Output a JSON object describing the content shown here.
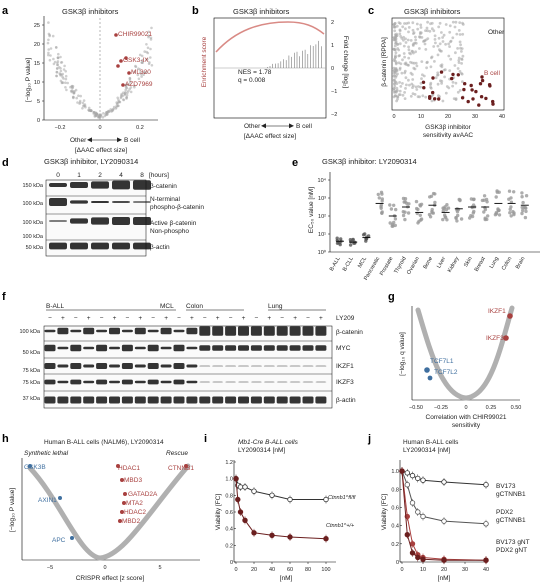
{
  "colors": {
    "red": "#a8403f",
    "blue": "#3f6f9f",
    "grey": "#a8a8a8",
    "dark": "#5a5a5a",
    "pink": "#d98a85",
    "brown": "#6b1f1f"
  },
  "panels": {
    "a": {
      "letter": "a",
      "title": "GSK3β inhibitors",
      "ylabel": "[−log₁₀ P value]",
      "xtitle": "[ΔAAC effect size]",
      "dir_left": "Other",
      "dir_right": "B cell",
      "xticks": [
        "−0.2",
        "0",
        "0.2"
      ],
      "yticks": [
        "0",
        "5",
        "10",
        "15",
        "20",
        "25"
      ],
      "labels": [
        "CHIR99021",
        "GSK3-IX",
        "ML320",
        "AZD7969"
      ]
    },
    "b": {
      "letter": "b",
      "title": "GSK3β inhibitors",
      "ylabel_left": "Enrichment score",
      "ylabel_right": "Fold change [log₂]",
      "nes": "NES = 1.78",
      "q": "q = 0.008",
      "xtitle": "[ΔAAC effect size]",
      "dir_left": "Other",
      "dir_right": "B cell",
      "yticks_right": [
        "2",
        "1",
        "0",
        "−1",
        "−2"
      ]
    },
    "c": {
      "letter": "c",
      "title": "GSK3β inhibitors",
      "ylabel": "β-catenin [RPPA]",
      "xtitle1": "GSK3β inhibitor",
      "xtitle2": "sensitivity avAAC",
      "other": "Other",
      "bcell": "B cell",
      "xticks": [
        "0",
        "10",
        "20",
        "30",
        "40"
      ]
    },
    "d": {
      "letter": "d",
      "title": "GSK3β inhibitor, LY2090314",
      "hours": [
        "0",
        "1",
        "2",
        "4",
        "8"
      ],
      "hours_label": "[hours]",
      "kda": [
        "150 kDa",
        "100 kDa",
        "100 kDa",
        "100 kDa",
        "50 kDa"
      ],
      "bands": [
        "β-catenin",
        "N-terminal",
        "phospho-β-catenin",
        "Active β-catenin",
        "Non-phospho",
        "β-actin"
      ]
    },
    "e": {
      "letter": "e",
      "title": "GSK3β inhibitor: LY2090314",
      "ylabel": "EC₅₀ value [nM]",
      "yticks": [
        "10⁰",
        "10¹",
        "10²",
        "10³",
        "10⁴"
      ],
      "categories": [
        "B-ALL",
        "B-CLL",
        "MCL",
        "Pancreatic",
        "Prostate",
        "Thyroid",
        "Ovarian",
        "Bone",
        "Liver",
        "Kidney",
        "Skin",
        "Breast",
        "Lung",
        "Colon",
        "Brain"
      ]
    },
    "f": {
      "letter": "f",
      "groups": [
        "B-ALL",
        "MCL",
        "Colon",
        "Lung"
      ],
      "ly": "LY209",
      "kda": [
        "100 kDa",
        "50 kDa",
        "75 kDa",
        "75 kDa",
        "37 kDa"
      ],
      "bands": [
        "β-catenin",
        "MYC",
        "IKZF1",
        "IKZF3",
        "β-actin"
      ],
      "pm": "−  +"
    },
    "g": {
      "letter": "g",
      "ylabel": "[−log₁₀ q value]",
      "xtitle1": "Correlation with CHIR99021",
      "xtitle2": "sensitivity",
      "xticks": [
        "−0.50",
        "−0.25",
        "0",
        "0.25",
        "0.50"
      ],
      "labels_red": [
        "IKZF1",
        "IKZF3"
      ],
      "labels_blue": [
        "TCF7L1",
        "TCF7L2"
      ]
    },
    "h": {
      "letter": "h",
      "title1": "Human B-ALL cells (NALM6), LY2090314",
      "ylabel": "[−log₁₀ P value]",
      "left_title": "Synthetic lethal",
      "right_title": "Rescue",
      "xtitle": "CRISPR effect [z score]",
      "xticks": [
        "−5",
        "0",
        "5"
      ],
      "labels_blue": [
        "GSK3B",
        "AXIN1",
        "APC"
      ],
      "labels_red": [
        "HDAC1",
        "MBD3",
        "GATAD2A",
        "MTA2",
        "HDAC2",
        "MBD2",
        "CTNNB1"
      ]
    },
    "i": {
      "letter": "i",
      "title1": "Mb1-Cre B-ALL cells",
      "title2": "LY2090314 [nM]",
      "ylabel": "Viability [FC]",
      "xlabel": "[nM]",
      "xticks": [
        "0",
        "20",
        "40",
        "60",
        "80",
        "100"
      ],
      "yticks": [
        "0",
        "0.2",
        "0.4",
        "0.6",
        "0.8",
        "1.0",
        "1.2"
      ],
      "series": [
        "Ctnnb1^fl/fl",
        "Ctnnb1^+/+"
      ]
    },
    "j": {
      "letter": "j",
      "title1": "Human B-ALL cells",
      "title2": "LY2090314 [nM]",
      "ylabel": "Viability [FC]",
      "xlabel": "[nM]",
      "xticks": [
        "0",
        "10",
        "20",
        "30",
        "40"
      ],
      "yticks": [
        "0",
        "0.2",
        "0.4",
        "0.6",
        "0.8",
        "1.0"
      ],
      "legend": [
        [
          "BV173",
          "gCTNNB1"
        ],
        [
          "PDX2",
          "gCTNNB1"
        ],
        [
          "BV173 gNT"
        ],
        [
          "PDX2 gNT"
        ]
      ]
    }
  },
  "chart_data": [
    {
      "panel": "i",
      "type": "line",
      "x": [
        0,
        2,
        5,
        10,
        20,
        40,
        60,
        100
      ],
      "series": [
        {
          "name": "Ctnnb1^fl/fl",
          "values": [
            1.0,
            0.92,
            0.9,
            0.9,
            0.85,
            0.8,
            0.75,
            0.75
          ]
        },
        {
          "name": "Ctnnb1^+/+",
          "values": [
            1.0,
            0.75,
            0.6,
            0.5,
            0.35,
            0.32,
            0.3,
            0.28
          ]
        }
      ],
      "xlim": [
        0,
        100
      ],
      "ylim": [
        0,
        1.2
      ]
    },
    {
      "panel": "j",
      "type": "line",
      "x": [
        0,
        2.5,
        5,
        7.5,
        10,
        20,
        40
      ],
      "series": [
        {
          "name": "BV173 gCTNNB1",
          "values": [
            1.0,
            0.98,
            0.95,
            0.92,
            0.9,
            0.88,
            0.85
          ]
        },
        {
          "name": "PDX2 gCTNNB1",
          "values": [
            1.0,
            0.85,
            0.65,
            0.55,
            0.5,
            0.45,
            0.42
          ]
        },
        {
          "name": "BV173 gNT",
          "values": [
            1.0,
            0.5,
            0.2,
            0.08,
            0.05,
            0.03,
            0.02
          ]
        },
        {
          "name": "PDX2 gNT",
          "values": [
            1.0,
            0.3,
            0.1,
            0.05,
            0.03,
            0.02,
            0.02
          ]
        }
      ],
      "xlim": [
        0,
        40
      ],
      "ylim": [
        0,
        1.1
      ]
    },
    {
      "panel": "e",
      "type": "scatter",
      "categories": [
        "B-ALL",
        "B-CLL",
        "MCL",
        "Pancreatic",
        "Prostate",
        "Thyroid",
        "Ovarian",
        "Bone",
        "Liver",
        "Kidney",
        "Skin",
        "Breast",
        "Lung",
        "Colon",
        "Brain"
      ],
      "medians_log10": [
        0.6,
        0.55,
        0.8,
        2.7,
        2.0,
        2.5,
        2.2,
        2.6,
        2.2,
        2.4,
        2.5,
        2.5,
        2.7,
        2.7,
        2.6
      ],
      "ylim_log10": [
        0,
        4
      ]
    }
  ]
}
